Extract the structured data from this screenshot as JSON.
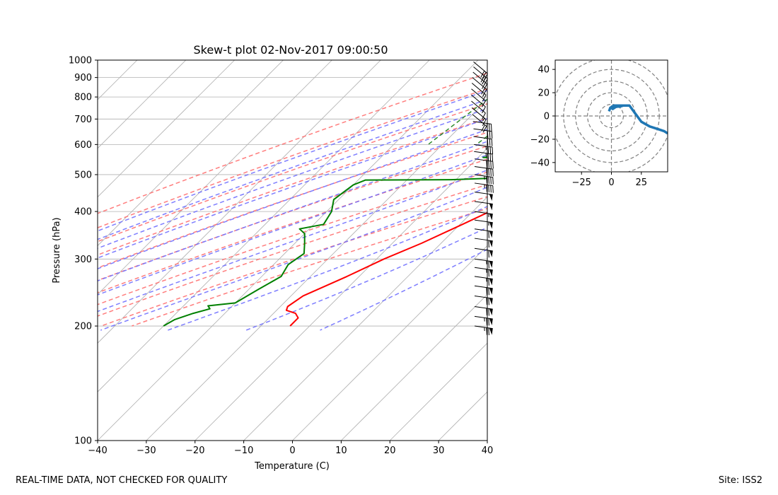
{
  "chart_data": [
    {
      "type": "line",
      "subtype": "skew-t log-p",
      "title": "Skew-t plot 02-Nov-2017 09:00:50",
      "xlabel": "Temperature (C)",
      "ylabel": "Pressure (hPa)",
      "xlim": [
        -40,
        40
      ],
      "ylim": [
        1000,
        100
      ],
      "xticks": [
        -40,
        -30,
        -20,
        -10,
        0,
        10,
        20,
        30,
        40
      ],
      "yticks": [
        100,
        200,
        300,
        400,
        500,
        600,
        700,
        800,
        900,
        1000
      ],
      "series": [
        {
          "name": "Temperature",
          "color": "#ff0000",
          "points": [
            [
              863,
              12
            ],
            [
              860,
              19.5
            ],
            [
              845,
              20
            ],
            [
              820,
              19
            ],
            [
              790,
              18
            ],
            [
              750,
              15.5
            ],
            [
              700,
              12
            ],
            [
              650,
              8
            ],
            [
              620,
              4.8
            ],
            [
              580,
              2.5
            ],
            [
              540,
              1.2
            ],
            [
              520,
              1
            ],
            [
              500,
              0.5
            ],
            [
              480,
              1.4
            ],
            [
              460,
              0.5
            ],
            [
              430,
              -3
            ],
            [
              400,
              -6.5
            ],
            [
              370,
              -9.5
            ],
            [
              330,
              -14
            ],
            [
              300,
              -18.5
            ],
            [
              270,
              -22.5
            ],
            [
              240,
              -27.5
            ],
            [
              225,
              -28.5
            ],
            [
              220,
              -28
            ],
            [
              216,
              -25.5
            ],
            [
              210,
              -24
            ],
            [
              200,
              -24
            ]
          ]
        },
        {
          "name": "Dewpoint",
          "color": "#008000",
          "points": [
            [
              850,
              6
            ],
            [
              830,
              5
            ],
            [
              800,
              3
            ],
            [
              770,
              1.5
            ],
            [
              730,
              0
            ],
            [
              700,
              -1
            ],
            [
              660,
              -3
            ],
            [
              630,
              -5
            ],
            [
              600,
              -6
            ],
            [
              580,
              -7
            ],
            [
              575,
              -14
            ],
            [
              560,
              -12
            ],
            [
              555,
              -19
            ],
            [
              545,
              -8.5
            ],
            [
              530,
              -4
            ],
            [
              515,
              -6
            ],
            [
              500,
              -9
            ],
            [
              490,
              -12
            ],
            [
              485,
              -21
            ],
            [
              484,
              -38.5
            ],
            [
              470,
              -40
            ],
            [
              450,
              -40.5
            ],
            [
              430,
              -41
            ],
            [
              400,
              -39
            ],
            [
              370,
              -38
            ],
            [
              360,
              -42
            ],
            [
              350,
              -40
            ],
            [
              330,
              -38
            ],
            [
              310,
              -36
            ],
            [
              290,
              -37
            ],
            [
              270,
              -36
            ],
            [
              250,
              -38
            ],
            [
              230,
              -40
            ],
            [
              226,
              -45
            ],
            [
              222,
              -44
            ],
            [
              216,
              -46.5
            ],
            [
              208,
              -49
            ],
            [
              200,
              -50
            ]
          ]
        }
      ],
      "reference_lines": {
        "isotherms_C": [
          -110,
          -100,
          -90,
          -80,
          -70,
          -60,
          -50,
          -40,
          -30,
          -20,
          -10,
          0,
          10,
          20,
          30,
          40
        ],
        "dry_adiabats_C": [
          -30,
          -20,
          -10,
          0,
          10,
          20,
          30,
          40,
          50,
          60,
          70
        ],
        "moist_adiabats_C": [
          -20,
          -15,
          -10,
          -5,
          0,
          5,
          10,
          15,
          20,
          25,
          30,
          35
        ],
        "mixing_ratio_lines_gkg": [
          0.4,
          1,
          2,
          3,
          5,
          8,
          12,
          16,
          20
        ],
        "colors": {
          "isotherm": "#b0b0b0",
          "dry_adiabat": "#ff6f6f",
          "moist_adiabat": "#7070ff",
          "mixing_ratio": "#2e8b2e"
        }
      },
      "wind_barbs": [
        {
          "p": 990,
          "speed": 30
        },
        {
          "p": 960,
          "speed": 30
        },
        {
          "p": 930,
          "speed": 25
        },
        {
          "p": 900,
          "speed": 20
        },
        {
          "p": 870,
          "speed": 15
        },
        {
          "p": 840,
          "speed": 10
        },
        {
          "p": 810,
          "speed": 10
        },
        {
          "p": 780,
          "speed": 10
        },
        {
          "p": 750,
          "speed": 15
        },
        {
          "p": 720,
          "speed": 20
        },
        {
          "p": 690,
          "speed": 25
        },
        {
          "p": 660,
          "speed": 30
        },
        {
          "p": 630,
          "speed": 30
        },
        {
          "p": 600,
          "speed": 35
        },
        {
          "p": 575,
          "speed": 35
        },
        {
          "p": 550,
          "speed": 40
        },
        {
          "p": 525,
          "speed": 40
        },
        {
          "p": 500,
          "speed": 45
        },
        {
          "p": 475,
          "speed": 45
        },
        {
          "p": 450,
          "speed": 50
        },
        {
          "p": 425,
          "speed": 50
        },
        {
          "p": 400,
          "speed": 55
        },
        {
          "p": 380,
          "speed": 55
        },
        {
          "p": 360,
          "speed": 60
        },
        {
          "p": 340,
          "speed": 60
        },
        {
          "p": 320,
          "speed": 60
        },
        {
          "p": 300,
          "speed": 65
        },
        {
          "p": 285,
          "speed": 65
        },
        {
          "p": 270,
          "speed": 65
        },
        {
          "p": 255,
          "speed": 70
        },
        {
          "p": 240,
          "speed": 70
        },
        {
          "p": 225,
          "speed": 70
        },
        {
          "p": 212,
          "speed": 75
        },
        {
          "p": 200,
          "speed": 75
        }
      ],
      "barb_color": "#000000"
    },
    {
      "type": "line",
      "subtype": "hodograph",
      "xlim": [
        -47,
        47
      ],
      "ylim": [
        -48,
        48
      ],
      "xticks": [
        -25,
        0,
        25
      ],
      "yticks": [
        40,
        20,
        0,
        -20,
        -40
      ],
      "rings": [
        10,
        20,
        30,
        40,
        50
      ],
      "ring_color": "#808080",
      "color": "#1f77b4",
      "series": [
        {
          "name": "Wind",
          "u": [
            -2,
            -1,
            2,
            6,
            10,
            7,
            4,
            1,
            0,
            5,
            10,
            15,
            20,
            25,
            32,
            38,
            44,
            47
          ],
          "v": [
            4,
            7,
            9,
            9,
            9,
            8,
            8,
            6,
            7,
            8,
            9,
            9,
            2,
            -5,
            -9,
            -11,
            -13,
            -15
          ]
        }
      ]
    }
  ],
  "footer": {
    "left": "REAL-TIME DATA, NOT CHECKED FOR QUALITY",
    "right": "Site: ISS2"
  }
}
